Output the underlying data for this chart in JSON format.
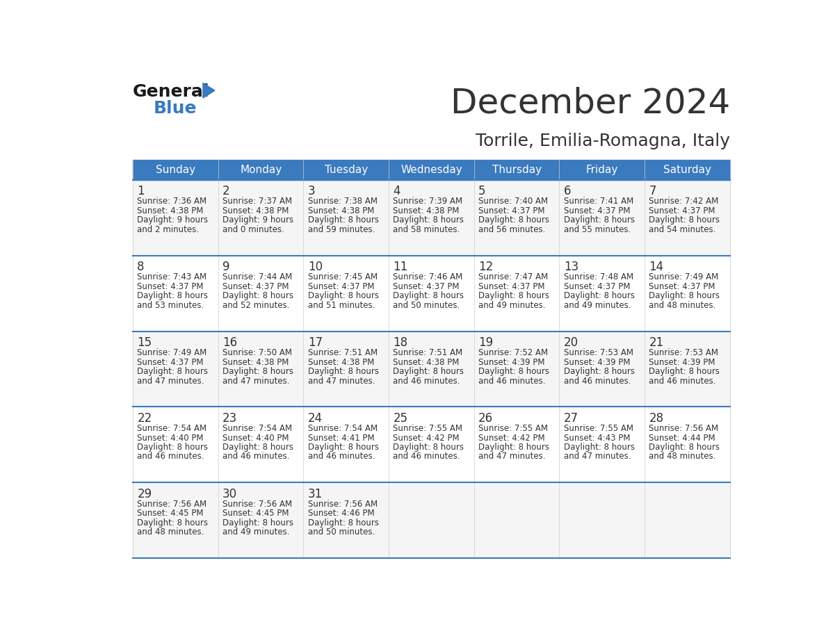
{
  "title": "December 2024",
  "subtitle": "Torrile, Emilia-Romagna, Italy",
  "header_color": "#3a7abf",
  "header_text_color": "#ffffff",
  "days_of_week": [
    "Sunday",
    "Monday",
    "Tuesday",
    "Wednesday",
    "Thursday",
    "Friday",
    "Saturday"
  ],
  "row_bg_colors": [
    "#f5f5f5",
    "#ffffff"
  ],
  "border_color": "#3a7abf",
  "grid_color": "#cccccc",
  "text_color": "#333333",
  "calendar_data": [
    [
      {
        "day": 1,
        "sunrise": "7:36 AM",
        "sunset": "4:38 PM",
        "daylight_hours": 9,
        "daylight_minutes": 2
      },
      {
        "day": 2,
        "sunrise": "7:37 AM",
        "sunset": "4:38 PM",
        "daylight_hours": 9,
        "daylight_minutes": 0
      },
      {
        "day": 3,
        "sunrise": "7:38 AM",
        "sunset": "4:38 PM",
        "daylight_hours": 8,
        "daylight_minutes": 59
      },
      {
        "day": 4,
        "sunrise": "7:39 AM",
        "sunset": "4:38 PM",
        "daylight_hours": 8,
        "daylight_minutes": 58
      },
      {
        "day": 5,
        "sunrise": "7:40 AM",
        "sunset": "4:37 PM",
        "daylight_hours": 8,
        "daylight_minutes": 56
      },
      {
        "day": 6,
        "sunrise": "7:41 AM",
        "sunset": "4:37 PM",
        "daylight_hours": 8,
        "daylight_minutes": 55
      },
      {
        "day": 7,
        "sunrise": "7:42 AM",
        "sunset": "4:37 PM",
        "daylight_hours": 8,
        "daylight_minutes": 54
      }
    ],
    [
      {
        "day": 8,
        "sunrise": "7:43 AM",
        "sunset": "4:37 PM",
        "daylight_hours": 8,
        "daylight_minutes": 53
      },
      {
        "day": 9,
        "sunrise": "7:44 AM",
        "sunset": "4:37 PM",
        "daylight_hours": 8,
        "daylight_minutes": 52
      },
      {
        "day": 10,
        "sunrise": "7:45 AM",
        "sunset": "4:37 PM",
        "daylight_hours": 8,
        "daylight_minutes": 51
      },
      {
        "day": 11,
        "sunrise": "7:46 AM",
        "sunset": "4:37 PM",
        "daylight_hours": 8,
        "daylight_minutes": 50
      },
      {
        "day": 12,
        "sunrise": "7:47 AM",
        "sunset": "4:37 PM",
        "daylight_hours": 8,
        "daylight_minutes": 49
      },
      {
        "day": 13,
        "sunrise": "7:48 AM",
        "sunset": "4:37 PM",
        "daylight_hours": 8,
        "daylight_minutes": 49
      },
      {
        "day": 14,
        "sunrise": "7:49 AM",
        "sunset": "4:37 PM",
        "daylight_hours": 8,
        "daylight_minutes": 48
      }
    ],
    [
      {
        "day": 15,
        "sunrise": "7:49 AM",
        "sunset": "4:37 PM",
        "daylight_hours": 8,
        "daylight_minutes": 47
      },
      {
        "day": 16,
        "sunrise": "7:50 AM",
        "sunset": "4:38 PM",
        "daylight_hours": 8,
        "daylight_minutes": 47
      },
      {
        "day": 17,
        "sunrise": "7:51 AM",
        "sunset": "4:38 PM",
        "daylight_hours": 8,
        "daylight_minutes": 47
      },
      {
        "day": 18,
        "sunrise": "7:51 AM",
        "sunset": "4:38 PM",
        "daylight_hours": 8,
        "daylight_minutes": 46
      },
      {
        "day": 19,
        "sunrise": "7:52 AM",
        "sunset": "4:39 PM",
        "daylight_hours": 8,
        "daylight_minutes": 46
      },
      {
        "day": 20,
        "sunrise": "7:53 AM",
        "sunset": "4:39 PM",
        "daylight_hours": 8,
        "daylight_minutes": 46
      },
      {
        "day": 21,
        "sunrise": "7:53 AM",
        "sunset": "4:39 PM",
        "daylight_hours": 8,
        "daylight_minutes": 46
      }
    ],
    [
      {
        "day": 22,
        "sunrise": "7:54 AM",
        "sunset": "4:40 PM",
        "daylight_hours": 8,
        "daylight_minutes": 46
      },
      {
        "day": 23,
        "sunrise": "7:54 AM",
        "sunset": "4:40 PM",
        "daylight_hours": 8,
        "daylight_minutes": 46
      },
      {
        "day": 24,
        "sunrise": "7:54 AM",
        "sunset": "4:41 PM",
        "daylight_hours": 8,
        "daylight_minutes": 46
      },
      {
        "day": 25,
        "sunrise": "7:55 AM",
        "sunset": "4:42 PM",
        "daylight_hours": 8,
        "daylight_minutes": 46
      },
      {
        "day": 26,
        "sunrise": "7:55 AM",
        "sunset": "4:42 PM",
        "daylight_hours": 8,
        "daylight_minutes": 47
      },
      {
        "day": 27,
        "sunrise": "7:55 AM",
        "sunset": "4:43 PM",
        "daylight_hours": 8,
        "daylight_minutes": 47
      },
      {
        "day": 28,
        "sunrise": "7:56 AM",
        "sunset": "4:44 PM",
        "daylight_hours": 8,
        "daylight_minutes": 48
      }
    ],
    [
      {
        "day": 29,
        "sunrise": "7:56 AM",
        "sunset": "4:45 PM",
        "daylight_hours": 8,
        "daylight_minutes": 48
      },
      {
        "day": 30,
        "sunrise": "7:56 AM",
        "sunset": "4:45 PM",
        "daylight_hours": 8,
        "daylight_minutes": 49
      },
      {
        "day": 31,
        "sunrise": "7:56 AM",
        "sunset": "4:46 PM",
        "daylight_hours": 8,
        "daylight_minutes": 50
      },
      null,
      null,
      null,
      null
    ]
  ],
  "logo_text_general": "General",
  "logo_text_blue": "Blue",
  "logo_color_general": "#1a1a1a",
  "logo_color_blue": "#3a7abf",
  "logo_triangle_color": "#3a7abf",
  "title_fontsize": 36,
  "subtitle_fontsize": 18,
  "header_fontsize": 11,
  "day_num_fontsize": 12,
  "cell_text_fontsize": 8.5
}
